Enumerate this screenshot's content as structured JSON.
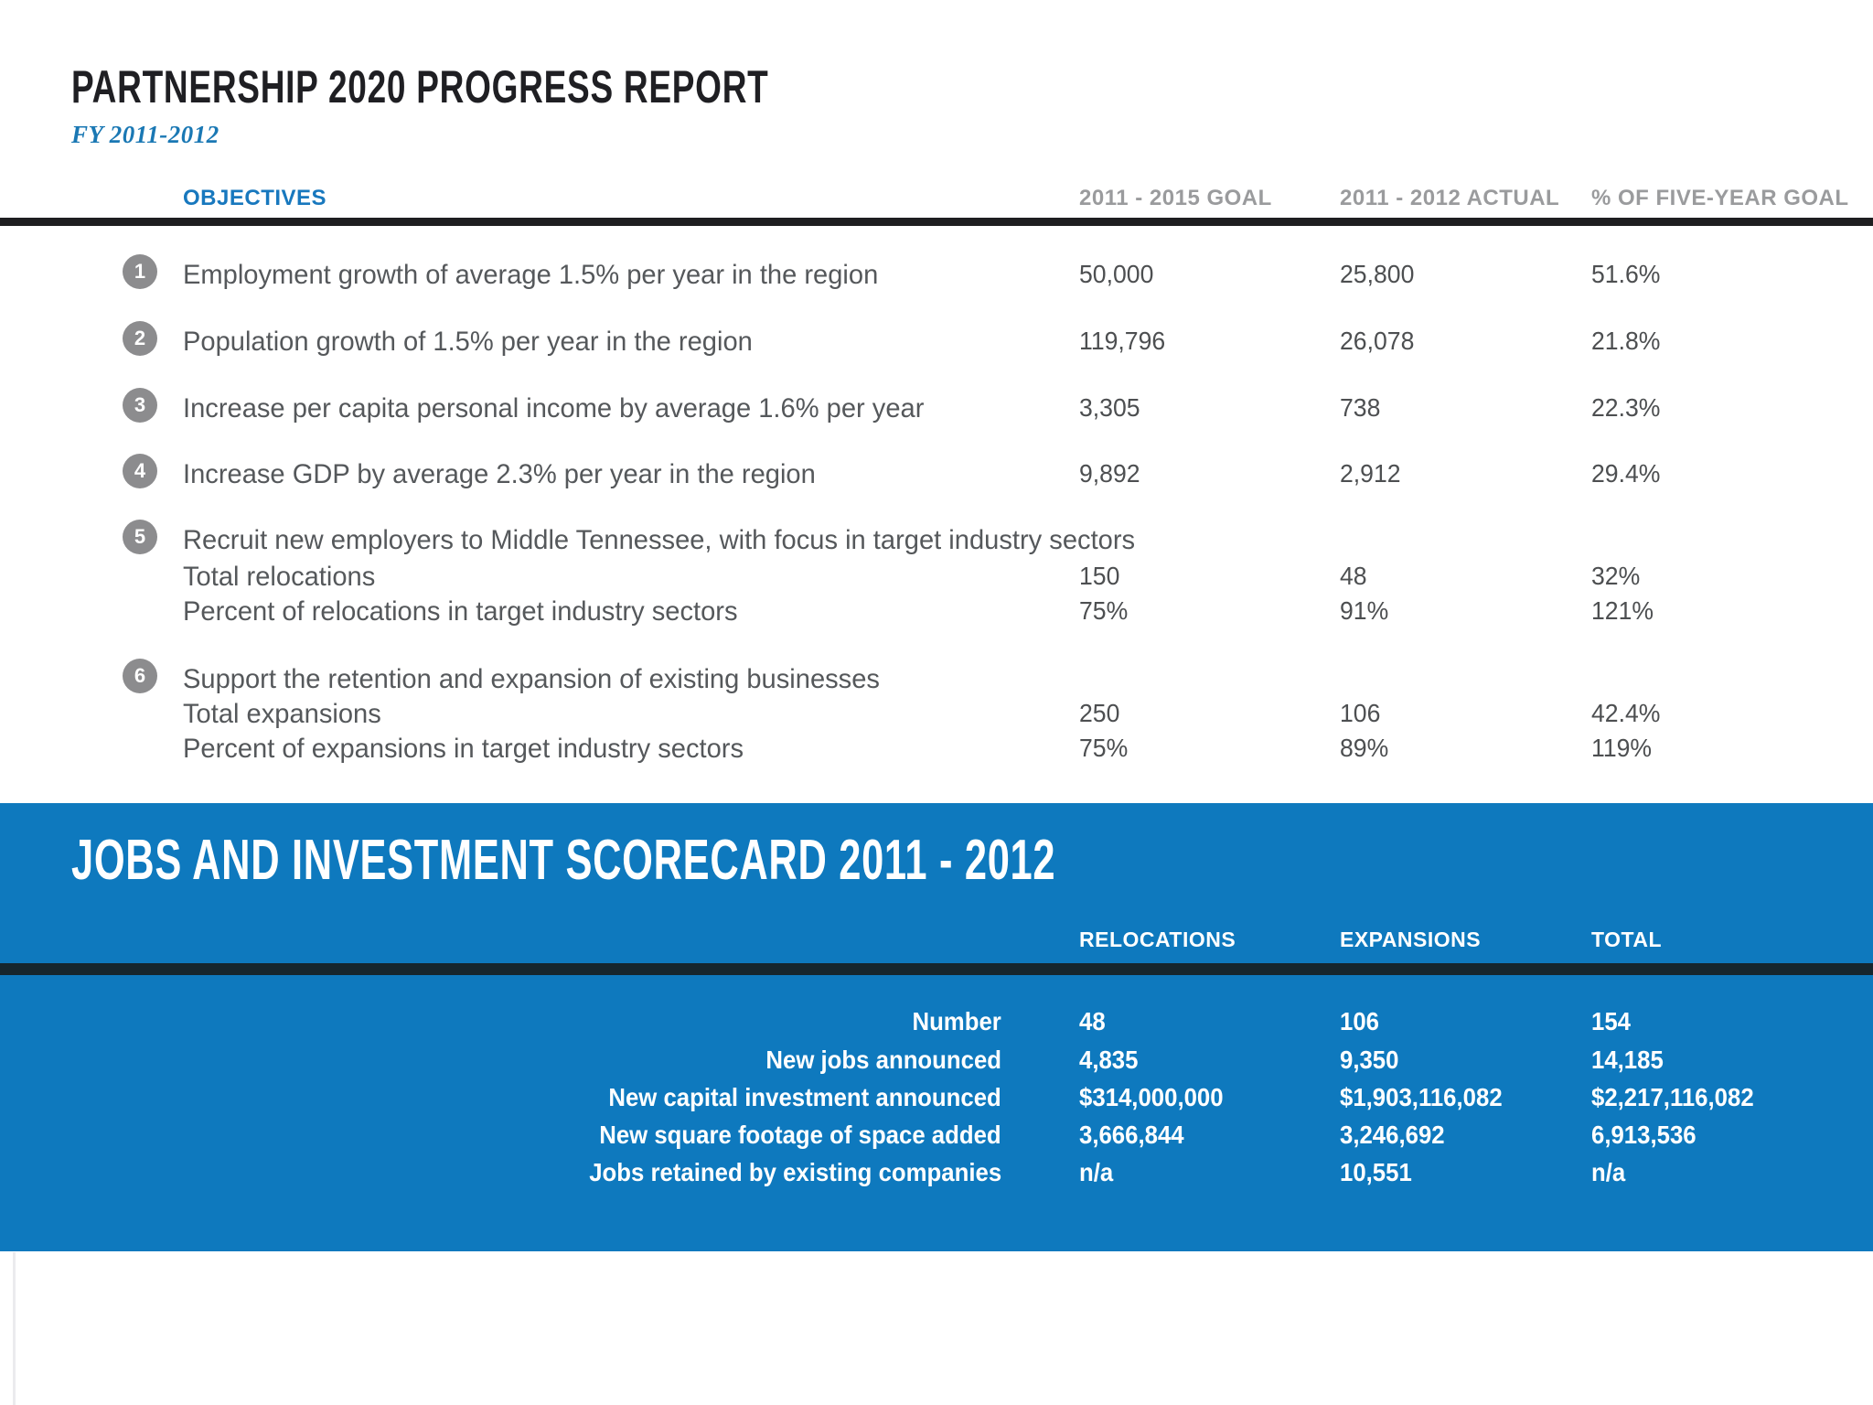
{
  "report": {
    "title": "PARTNERSHIP 2020 PROGRESS REPORT",
    "subtitle": "FY 2011-2012"
  },
  "objectives_table": {
    "headers": {
      "objectives": "OBJECTIVES",
      "goal": "2011 - 2015 GOAL",
      "actual": "2011 - 2012 ACTUAL",
      "pct": "% OF FIVE-YEAR GOAL"
    },
    "rows": [
      {
        "num": "1",
        "label": "Employment growth of average 1.5% per year in the region",
        "goal": "50,000",
        "actual": "25,800",
        "pct": "51.6%"
      },
      {
        "num": "2",
        "label": "Population growth of 1.5% per year in the region",
        "goal": "119,796",
        "actual": "26,078",
        "pct": "21.8%"
      },
      {
        "num": "3",
        "label": "Increase per capita personal income by average 1.6% per year",
        "goal": "3,305",
        "actual": "738",
        "pct": "22.3%"
      },
      {
        "num": "4",
        "label": "Increase GDP by average 2.3% per year in the region",
        "goal": "9,892",
        "actual": "2,912",
        "pct": "29.4%"
      },
      {
        "num": "5",
        "label": "Recruit new employers to Middle Tennessee, with focus in target industry sectors",
        "sub": [
          {
            "label": "Total relocations",
            "goal": "150",
            "actual": "48",
            "pct": "32%"
          },
          {
            "label": "Percent of relocations in target industry sectors",
            "goal": "75%",
            "actual": "91%",
            "pct": "121%"
          }
        ]
      },
      {
        "num": "6",
        "label": "Support the retention and expansion of existing businesses",
        "sub": [
          {
            "label": "Total expansions",
            "goal": "250",
            "actual": "106",
            "pct": "42.4%"
          },
          {
            "label": "Percent of expansions in target industry sectors",
            "goal": "75%",
            "actual": "89%",
            "pct": "119%"
          }
        ]
      }
    ]
  },
  "scorecard": {
    "title": "JOBS AND INVESTMENT SCORECARD 2011 - 2012",
    "headers": {
      "relocations": "RELOCATIONS",
      "expansions": "EXPANSIONS",
      "total": "TOTAL"
    },
    "rows": [
      {
        "label": "Number",
        "relocations": "48",
        "expansions": "106",
        "total": "154"
      },
      {
        "label": "New jobs announced",
        "relocations": "4,835",
        "expansions": "9,350",
        "total": "14,185"
      },
      {
        "label": "New capital investment announced",
        "relocations": "$314,000,000",
        "expansions": "$1,903,116,082",
        "total": "$2,217,116,082"
      },
      {
        "label": "New square footage of space added",
        "relocations": "3,666,844",
        "expansions": "3,246,692",
        "total": "6,913,536"
      },
      {
        "label": "Jobs retained by existing companies",
        "relocations": "n/a",
        "expansions": "10,551",
        "total": "n/a"
      }
    ]
  },
  "colors": {
    "accent_blue": "#0e79be",
    "objectives_header_blue": "#1878be",
    "subtitle_blue": "#1a78b4",
    "column_header_gray": "#9a9b9d",
    "body_text_gray": "#55585b",
    "number_badge_gray": "#8c8c8e",
    "top_rule_black": "#1e1e20",
    "scorecard_rule_dark": "#16262e",
    "scorecard_text_white": "#ffffff"
  }
}
